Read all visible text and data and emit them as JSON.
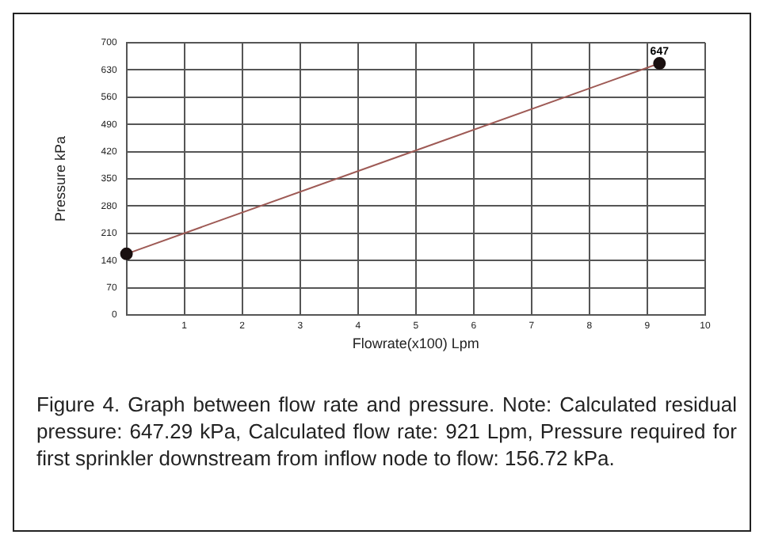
{
  "chart_data": {
    "type": "line",
    "xlabel": "Flowrate(x100) Lpm",
    "ylabel": "Pressure kPa",
    "x": [
      0,
      9.21
    ],
    "series": [
      {
        "color": "#9e5a55",
        "values": [
          157,
          647
        ],
        "value_labels": [
          null,
          "647"
        ]
      }
    ],
    "xlim": [
      0,
      10
    ],
    "xticks": [
      1,
      2,
      3,
      4,
      5,
      6,
      7,
      8,
      9,
      10
    ],
    "ylim": [
      0,
      700
    ],
    "yticks": [
      0,
      70,
      140,
      210,
      280,
      350,
      420,
      490,
      560,
      630,
      700
    ],
    "grid": true,
    "marker": "circle",
    "line_style": "solid",
    "legend": false,
    "annotations": [
      "Figure 4. Graph between flow rate and pressure. Note: Calculated residual pressure: 647.29 kPa, Calculated flow rate: 921 Lpm, Pressure required for first sprinkler downstream from inflow node to flow: 156.72 kPa."
    ]
  }
}
